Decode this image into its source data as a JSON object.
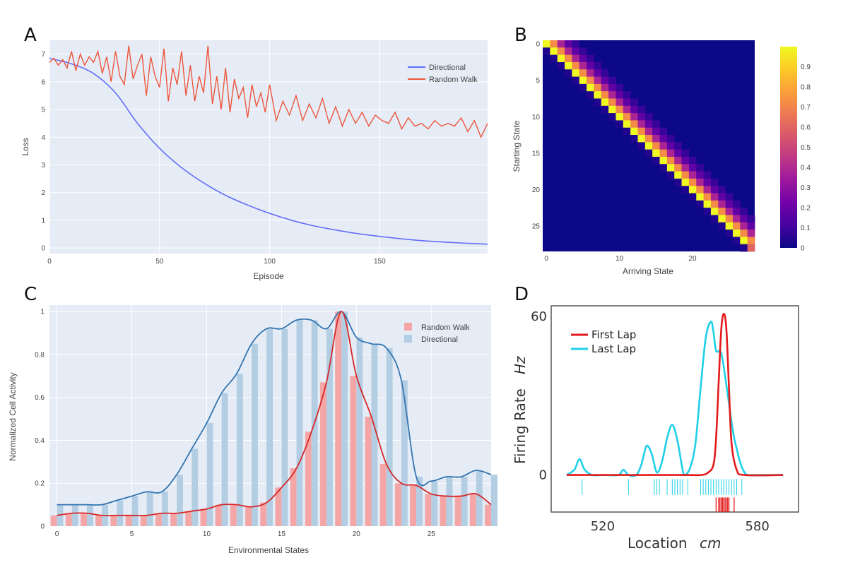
{
  "panels": {
    "a": {
      "letter": "A"
    },
    "b": {
      "letter": "B"
    },
    "c": {
      "letter": "C"
    },
    "d": {
      "letter": "D"
    }
  },
  "chart_data": [
    {
      "panel": "A",
      "type": "line",
      "xlabel": "Episode",
      "ylabel": "Loss",
      "xlim": [
        0,
        199
      ],
      "ylim": [
        -0.2,
        7.5
      ],
      "xticks": [
        0,
        50,
        100,
        150
      ],
      "yticks": [
        0,
        1,
        2,
        3,
        4,
        5,
        6,
        7
      ],
      "grid": true,
      "legend_position": "top-right",
      "series": [
        {
          "name": "Directional",
          "color": "#636efa",
          "x": [
            0,
            10,
            20,
            30,
            40,
            50,
            60,
            70,
            80,
            90,
            100,
            110,
            120,
            130,
            140,
            150,
            160,
            170,
            180,
            190,
            199
          ],
          "y": [
            6.85,
            6.65,
            6.3,
            5.6,
            4.5,
            3.6,
            2.9,
            2.35,
            1.9,
            1.55,
            1.25,
            1.0,
            0.8,
            0.65,
            0.52,
            0.42,
            0.33,
            0.26,
            0.21,
            0.17,
            0.14
          ]
        },
        {
          "name": "Random Walk",
          "color": "#ef553b",
          "x": [
            0,
            2,
            4,
            6,
            8,
            10,
            12,
            14,
            16,
            18,
            20,
            22,
            24,
            26,
            28,
            30,
            32,
            34,
            36,
            38,
            40,
            42,
            44,
            46,
            48,
            50,
            52,
            54,
            56,
            58,
            60,
            62,
            64,
            66,
            68,
            70,
            72,
            74,
            76,
            78,
            80,
            82,
            84,
            86,
            88,
            90,
            92,
            94,
            96,
            98,
            100,
            103,
            106,
            109,
            112,
            115,
            118,
            121,
            124,
            127,
            130,
            133,
            136,
            139,
            142,
            145,
            148,
            151,
            154,
            157,
            160,
            163,
            166,
            169,
            172,
            175,
            178,
            181,
            184,
            187,
            190,
            193,
            196,
            199
          ],
          "y": [
            6.7,
            6.85,
            6.6,
            6.8,
            6.5,
            7.1,
            6.4,
            7.0,
            6.6,
            6.9,
            6.7,
            7.1,
            6.3,
            6.9,
            6.0,
            7.1,
            6.2,
            5.9,
            7.3,
            6.1,
            6.6,
            7.0,
            5.5,
            6.9,
            6.2,
            5.8,
            7.2,
            5.3,
            6.5,
            5.9,
            7.1,
            5.5,
            6.6,
            5.3,
            6.2,
            5.6,
            7.3,
            5.2,
            6.2,
            5.0,
            6.5,
            4.9,
            6.1,
            5.4,
            5.8,
            4.7,
            5.9,
            5.1,
            5.6,
            4.9,
            5.9,
            4.6,
            5.3,
            4.8,
            5.5,
            4.6,
            5.2,
            4.7,
            5.4,
            4.5,
            5.1,
            4.4,
            5.0,
            4.5,
            4.9,
            4.4,
            4.8,
            4.6,
            4.5,
            4.9,
            4.3,
            4.7,
            4.4,
            4.5,
            4.3,
            4.6,
            4.4,
            4.5,
            4.4,
            4.7,
            4.2,
            4.6,
            4.0,
            4.5
          ]
        }
      ]
    },
    {
      "panel": "B",
      "type": "heatmap",
      "xlabel": "Arriving State",
      "ylabel": "Starting State",
      "size": 29,
      "xticks": [
        0,
        10,
        20
      ],
      "yticks": [
        0,
        5,
        10,
        15,
        20,
        25
      ],
      "colorbar_ticks": [
        0,
        0.1,
        0.2,
        0.3,
        0.4,
        0.5,
        0.6,
        0.7,
        0.8,
        0.9
      ],
      "colorbar_tick_labels": [
        "0",
        "0.1",
        "0.2",
        "0.3",
        "0.4",
        "0.5",
        "0.6",
        "0.7",
        "0.8",
        "0.9"
      ],
      "colorscale": [
        "#0d0887",
        "#46039f",
        "#7201a8",
        "#9c179e",
        "#bd3786",
        "#d8576b",
        "#ed7953",
        "#fb9f3a",
        "#fdca26",
        "#f0f921"
      ],
      "transition_profile": {
        "offset_0": 1.0,
        "offset_1": 0.72,
        "offset_2": 0.38,
        "offset_3": 0.18,
        "offset_4": 0.08
      }
    },
    {
      "panel": "C",
      "type": "bar",
      "xlabel": "Environmental States",
      "ylabel": "Normalized Cell Activity",
      "xlim": [
        -0.5,
        29
      ],
      "ylim": [
        0,
        1.03
      ],
      "xticks": [
        0,
        5,
        10,
        15,
        20,
        25
      ],
      "yticks": [
        0,
        0.2,
        0.4,
        0.6,
        0.8,
        1
      ],
      "legend_position": "top-right",
      "categories": [
        0,
        1,
        2,
        3,
        4,
        5,
        6,
        7,
        8,
        9,
        10,
        11,
        12,
        13,
        14,
        15,
        16,
        17,
        18,
        19,
        20,
        21,
        22,
        23,
        24,
        25,
        26,
        27,
        28,
        29
      ],
      "series": [
        {
          "name": "Random Walk",
          "color": "#f4a6a6",
          "line_color": "#d62728",
          "values": [
            0.05,
            0.06,
            0.06,
            0.05,
            0.05,
            0.05,
            0.05,
            0.06,
            0.06,
            0.07,
            0.08,
            0.1,
            0.1,
            0.09,
            0.11,
            0.18,
            0.27,
            0.44,
            0.67,
            1.0,
            0.7,
            0.51,
            0.29,
            0.2,
            0.19,
            0.15,
            0.14,
            0.14,
            0.15,
            0.1
          ]
        },
        {
          "name": "Directional",
          "color": "#b3cde3",
          "line_color": "#3274b0",
          "values": [
            0.1,
            0.1,
            0.1,
            0.1,
            0.12,
            0.14,
            0.16,
            0.16,
            0.24,
            0.36,
            0.48,
            0.62,
            0.71,
            0.85,
            0.92,
            0.92,
            0.96,
            0.96,
            0.92,
            1.0,
            0.88,
            0.85,
            0.83,
            0.68,
            0.23,
            0.21,
            0.23,
            0.23,
            0.26,
            0.24
          ]
        }
      ]
    },
    {
      "panel": "D",
      "type": "line",
      "xlabel": "Location",
      "xlabel_unit": "cm",
      "ylabel": "Firing Rate",
      "ylabel_unit": "Hz",
      "xlim": [
        500,
        596
      ],
      "ylim": [
        -14,
        64
      ],
      "xticks": [
        520,
        580
      ],
      "yticks": [
        0,
        60
      ],
      "legend_position": "top-left",
      "series": [
        {
          "name": "First Lap",
          "color": "#e41a1c",
          "x": [
            506,
            550,
            558,
            561,
            563,
            564,
            565,
            566,
            567,
            568,
            569,
            570,
            572,
            575,
            590
          ],
          "y": [
            0,
            0,
            0,
            1,
            4,
            14,
            35,
            55,
            61,
            55,
            33,
            12,
            2,
            0,
            0
          ]
        },
        {
          "name": "Last Lap",
          "color": "#1fd0e8",
          "x": [
            506,
            509,
            511,
            513,
            516,
            520,
            526,
            528,
            530,
            533,
            535,
            537,
            539,
            541,
            543,
            545,
            547,
            549,
            551,
            552,
            554,
            556,
            558,
            560,
            562,
            563,
            564,
            566,
            568,
            570,
            571,
            572,
            573,
            574,
            575,
            576,
            577,
            578,
            590
          ],
          "y": [
            0,
            2,
            6,
            2,
            0,
            0,
            0,
            2,
            0,
            0,
            4,
            11,
            8,
            1,
            5,
            14,
            19,
            13,
            2,
            0,
            3,
            12,
            33,
            52,
            58,
            54,
            47,
            46,
            34,
            20,
            14,
            10,
            6,
            3,
            1,
            0,
            0,
            0,
            0
          ]
        }
      ],
      "spike_rasters": [
        {
          "series": "Last Lap",
          "x": [
            512,
            530,
            540,
            541,
            542,
            545,
            547,
            548,
            549,
            550,
            551,
            553,
            558,
            559,
            560,
            561,
            562,
            563,
            564,
            565,
            566,
            567,
            568,
            569,
            570,
            571,
            572,
            574
          ]
        },
        {
          "series": "First Lap",
          "x": [
            564,
            565,
            565.5,
            566,
            566.5,
            567,
            567.5,
            568,
            568.5,
            569,
            571
          ]
        }
      ]
    }
  ]
}
